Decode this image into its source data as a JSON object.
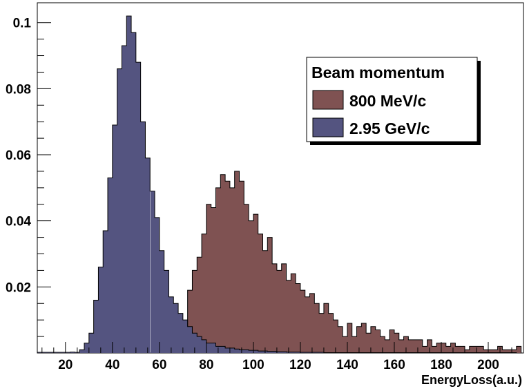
{
  "chart_data": {
    "type": "bar",
    "xlabel": "EnergyLoss(a.u.)",
    "ylabel": "",
    "xlim": [
      8,
      215
    ],
    "ylim": [
      0,
      0.106
    ],
    "x_ticks": [
      20,
      40,
      60,
      80,
      100,
      120,
      140,
      160,
      180,
      200
    ],
    "y_ticks": [
      0.02,
      0.04,
      0.06,
      0.08,
      0.1
    ],
    "grid": false,
    "legend": {
      "title": "Beam momentum",
      "placement": "top-right"
    },
    "bin_width": 2,
    "series": [
      {
        "name": "800 MeV/c",
        "color": "#7f5252",
        "bin_start": 70,
        "values": [
          0.004,
          0.019,
          0.025,
          0.029,
          0.036,
          0.045,
          0.044,
          0.05,
          0.054,
          0.052,
          0.05,
          0.055,
          0.052,
          0.045,
          0.04,
          0.042,
          0.036,
          0.031,
          0.035,
          0.027,
          0.025,
          0.027,
          0.022,
          0.024,
          0.021,
          0.019,
          0.017,
          0.018,
          0.015,
          0.012,
          0.015,
          0.012,
          0.01,
          0.008,
          0.005,
          0.009,
          0.005,
          0.008,
          0.009,
          0.006,
          0.008,
          0.007,
          0.005,
          0.004,
          0.007,
          0.006,
          0.004,
          0.005,
          0.004,
          0.004,
          0.004,
          0.002,
          0.004,
          0.002,
          0.003,
          0.003,
          0.002,
          0.003,
          0.002,
          0.002,
          0.001,
          0.002,
          0.002,
          0.002,
          0.001,
          0.001,
          0.001,
          0.002,
          0.001,
          0.001,
          0.001,
          0.002
        ]
      },
      {
        "name": "2.95 GeV/c",
        "color": "#545480",
        "bin_start": 8,
        "values": [
          0.0002,
          0.0002,
          0.0002,
          0.0002,
          0.0002,
          0.0002,
          0.0002,
          0.0003,
          0.0002,
          0.001,
          0.003,
          0.006,
          0.016,
          0.026,
          0.037,
          0.053,
          0.069,
          0.086,
          0.093,
          0.102,
          0.097,
          0.088,
          0.07,
          0.059,
          0.049,
          0.041,
          0.031,
          0.025,
          0.017,
          0.015,
          0.012,
          0.01,
          0.008,
          0.006,
          0.005,
          0.004,
          0.003,
          0.003,
          0.002,
          0.002,
          0.0015,
          0.0015,
          0.0012,
          0.001,
          0.001,
          0.0008,
          0.0008,
          0.0006,
          0.0006,
          0.0005,
          0.0005,
          0.0004,
          0.0004,
          0.0003,
          0.0003,
          0.0003,
          0.0002,
          0.0002,
          0.0002,
          0.0002,
          0.0002,
          0.0001,
          0.0001,
          0.0001,
          0.0001,
          0.0001,
          0.0001,
          0.0001,
          0.0001,
          0.0001,
          0.0001,
          0.0001,
          0.0001,
          0.0001,
          0.0001,
          0.0001,
          0.0001,
          0.0001,
          0.0001,
          0.0001,
          0.0001,
          0.0001,
          0.0001,
          0.0001,
          0.0001,
          0.0001,
          0.0001,
          0.0001,
          0.0001,
          0.0001,
          0.0001,
          0.0001,
          0.0001,
          0.0001,
          0.0001,
          0.0001,
          0.0001,
          0.0001,
          0.0001,
          0.0001,
          0.0001,
          0.0001
        ]
      }
    ]
  }
}
